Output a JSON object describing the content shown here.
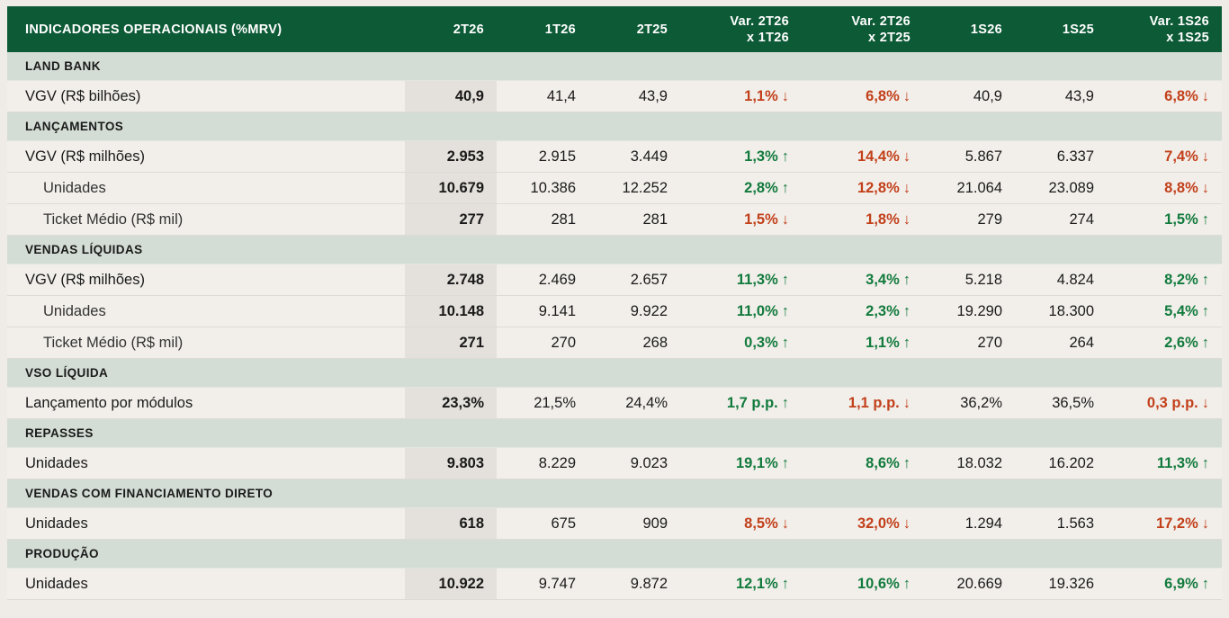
{
  "header": {
    "title": "INDICADORES OPERACIONAIS (%MRV)",
    "col_2t26": "2T26",
    "col_1t26": "1T26",
    "col_2t25": "2T25",
    "col_var1_line1": "Var. 2T26",
    "col_var1_line2": "x 1T26",
    "col_var2_line1": "Var. 2T26",
    "col_var2_line2": "x 2T25",
    "col_1s26": "1S26",
    "col_1s25": "1S25",
    "col_var3_line1": "Var. 1S26",
    "col_var3_line2": "x 1S25"
  },
  "colors": {
    "header_bg": "#0d5a36",
    "section_bg": "#d4ddd5",
    "up": "#127a3c",
    "down": "#c2401a"
  },
  "sections": [
    {
      "title": "LAND BANK",
      "rows": [
        {
          "label": "VGV (R$ bilhões)",
          "indent": false,
          "v2t26": "40,9",
          "v1t26": "41,4",
          "v2t25": "43,9",
          "var1": "1,1%",
          "var1_dir": "down",
          "var2": "6,8%",
          "var2_dir": "down",
          "v1s26": "40,9",
          "v1s25": "43,9",
          "var3": "6,8%",
          "var3_dir": "down"
        }
      ]
    },
    {
      "title": "LANÇAMENTOS",
      "rows": [
        {
          "label": "VGV (R$ milhões)",
          "indent": false,
          "v2t26": "2.953",
          "v1t26": "2.915",
          "v2t25": "3.449",
          "var1": "1,3%",
          "var1_dir": "up",
          "var2": "14,4%",
          "var2_dir": "down",
          "v1s26": "5.867",
          "v1s25": "6.337",
          "var3": "7,4%",
          "var3_dir": "down"
        },
        {
          "label": "Unidades",
          "indent": true,
          "v2t26": "10.679",
          "v1t26": "10.386",
          "v2t25": "12.252",
          "var1": "2,8%",
          "var1_dir": "up",
          "var2": "12,8%",
          "var2_dir": "down",
          "v1s26": "21.064",
          "v1s25": "23.089",
          "var3": "8,8%",
          "var3_dir": "down"
        },
        {
          "label": "Ticket Médio (R$ mil)",
          "indent": true,
          "v2t26": "277",
          "v1t26": "281",
          "v2t25": "281",
          "var1": "1,5%",
          "var1_dir": "down",
          "var2": "1,8%",
          "var2_dir": "down",
          "v1s26": "279",
          "v1s25": "274",
          "var3": "1,5%",
          "var3_dir": "up"
        }
      ]
    },
    {
      "title": "VENDAS LÍQUIDAS",
      "rows": [
        {
          "label": "VGV (R$ milhões)",
          "indent": false,
          "v2t26": "2.748",
          "v1t26": "2.469",
          "v2t25": "2.657",
          "var1": "11,3%",
          "var1_dir": "up",
          "var2": "3,4%",
          "var2_dir": "up",
          "v1s26": "5.218",
          "v1s25": "4.824",
          "var3": "8,2%",
          "var3_dir": "up"
        },
        {
          "label": "Unidades",
          "indent": true,
          "v2t26": "10.148",
          "v1t26": "9.141",
          "v2t25": "9.922",
          "var1": "11,0%",
          "var1_dir": "up",
          "var2": "2,3%",
          "var2_dir": "up",
          "v1s26": "19.290",
          "v1s25": "18.300",
          "var3": "5,4%",
          "var3_dir": "up"
        },
        {
          "label": "Ticket Médio (R$ mil)",
          "indent": true,
          "v2t26": "271",
          "v1t26": "270",
          "v2t25": "268",
          "var1": "0,3%",
          "var1_dir": "up",
          "var2": "1,1%",
          "var2_dir": "up",
          "v1s26": "270",
          "v1s25": "264",
          "var3": "2,6%",
          "var3_dir": "up"
        }
      ]
    },
    {
      "title": "VSO LÍQUIDA",
      "rows": [
        {
          "label": "Lançamento por módulos",
          "indent": false,
          "v2t26": "23,3%",
          "v1t26": "21,5%",
          "v2t25": "24,4%",
          "var1": "1,7 p.p.",
          "var1_dir": "up",
          "var2": "1,1 p.p.",
          "var2_dir": "down",
          "v1s26": "36,2%",
          "v1s25": "36,5%",
          "var3": "0,3 p.p.",
          "var3_dir": "down"
        }
      ]
    },
    {
      "title": "REPASSES",
      "rows": [
        {
          "label": "Unidades",
          "indent": false,
          "v2t26": "9.803",
          "v1t26": "8.229",
          "v2t25": "9.023",
          "var1": "19,1%",
          "var1_dir": "up",
          "var2": "8,6%",
          "var2_dir": "up",
          "v1s26": "18.032",
          "v1s25": "16.202",
          "var3": "11,3%",
          "var3_dir": "up"
        }
      ]
    },
    {
      "title": "VENDAS COM FINANCIAMENTO DIRETO",
      "rows": [
        {
          "label": "Unidades",
          "indent": false,
          "v2t26": "618",
          "v1t26": "675",
          "v2t25": "909",
          "var1": "8,5%",
          "var1_dir": "down",
          "var2": "32,0%",
          "var2_dir": "down",
          "v1s26": "1.294",
          "v1s25": "1.563",
          "var3": "17,2%",
          "var3_dir": "down"
        }
      ]
    },
    {
      "title": "PRODUÇÃO",
      "rows": [
        {
          "label": "Unidades",
          "indent": false,
          "v2t26": "10.922",
          "v1t26": "9.747",
          "v2t25": "9.872",
          "var1": "12,1%",
          "var1_dir": "up",
          "var2": "10,6%",
          "var2_dir": "up",
          "v1s26": "20.669",
          "v1s25": "19.326",
          "var3": "6,9%",
          "var3_dir": "up"
        }
      ]
    }
  ]
}
